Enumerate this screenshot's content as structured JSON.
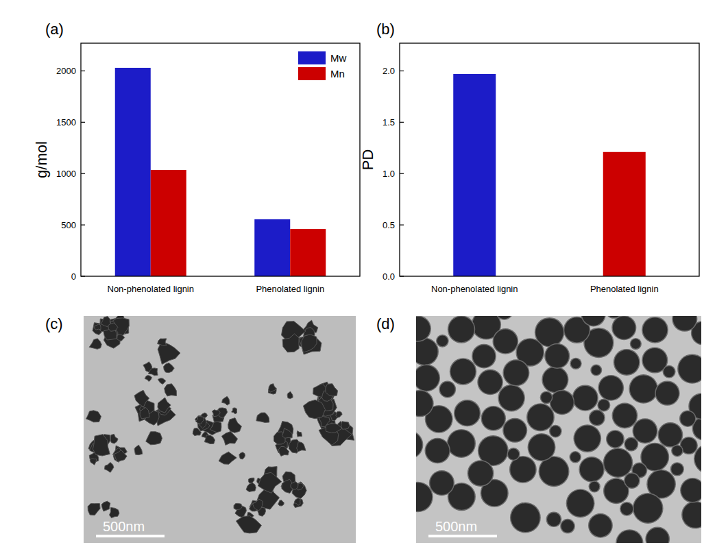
{
  "chart_data": [
    {
      "type": "bar",
      "panel_label": "(a)",
      "y_label": "g/mol",
      "categories": [
        "Non-phenolated lignin",
        "Phenolated lignin"
      ],
      "series": [
        {
          "name": "Mw",
          "color": "#1c1cc8",
          "values": [
            2030,
            555
          ]
        },
        {
          "name": "Mn",
          "color": "#cc0000",
          "values": [
            1035,
            460
          ]
        }
      ],
      "ylim": [
        0,
        2270
      ],
      "yticks": [
        0,
        500,
        1000,
        1500,
        2000
      ],
      "legend": "upper right"
    },
    {
      "type": "bar",
      "panel_label": "(b)",
      "y_label": "PD",
      "categories": [
        "Non-phenolated lignin",
        "Phenolated lignin"
      ],
      "values": [
        1.97,
        1.21
      ],
      "colors": [
        "#1c1cc8",
        "#cc0000"
      ],
      "ylim": [
        0,
        2.27
      ],
      "yticks": [
        {
          "value": 0,
          "label": "0.0"
        },
        0.5,
        {
          "value": 1,
          "label": "1.0"
        },
        1.5,
        {
          "value": 2,
          "label": "2.0"
        }
      ]
    }
  ],
  "images": [
    {
      "panel_label": "(c)",
      "scale_bar": "500nm"
    },
    {
      "panel_label": "(d)",
      "scale_bar": "500nm"
    }
  ]
}
